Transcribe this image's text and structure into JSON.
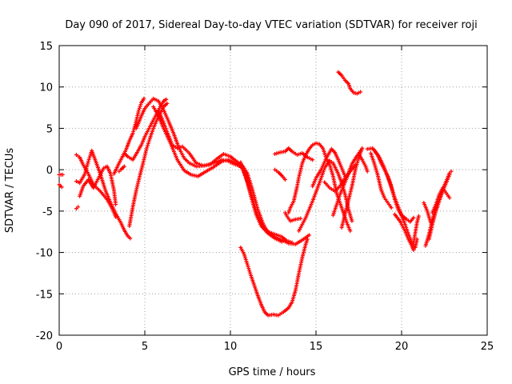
{
  "chart_data": {
    "type": "scatter",
    "title": "Day 090 of 2017, Sidereal Day-to-day VTEC variation (SDTVAR) for receiver roji",
    "xlabel": "GPS time / hours",
    "ylabel": "SDTVAR / TECUs",
    "xlim": [
      0,
      25
    ],
    "ylim": [
      -20,
      15
    ],
    "xticks": [
      0,
      5,
      10,
      15,
      20,
      25
    ],
    "yticks": [
      -20,
      -15,
      -10,
      -5,
      0,
      5,
      10,
      15
    ],
    "xtick_labels": [
      "0",
      "5",
      "10",
      "15",
      "20",
      "25"
    ],
    "ytick_labels": [
      "-20",
      "-15",
      "-10",
      "-5",
      "0",
      "5",
      "10",
      "15"
    ],
    "grid": true,
    "marker": "+",
    "color": "#ff0000",
    "tracks": [
      [
        [
          0,
          -0.6
        ],
        [
          0.2,
          -0.6
        ]
      ],
      [
        [
          0,
          -1.8
        ],
        [
          0.15,
          -2.1
        ]
      ],
      [
        [
          1.0,
          -4.7
        ],
        [
          1.1,
          -4.5
        ]
      ],
      [
        [
          1.0,
          1.8
        ],
        [
          1.2,
          1.5
        ],
        [
          1.4,
          0.6
        ],
        [
          1.7,
          -0.5
        ],
        [
          2.0,
          -1.8
        ],
        [
          2.4,
          -2.6
        ],
        [
          2.8,
          -3.6
        ],
        [
          3.1,
          -4.7
        ],
        [
          3.3,
          -5.7
        ]
      ],
      [
        [
          1.0,
          -1.4
        ],
        [
          1.2,
          -1.6
        ],
        [
          1.5,
          -0.5
        ],
        [
          1.7,
          1.0
        ],
        [
          1.9,
          2.3
        ],
        [
          2.1,
          1.2
        ],
        [
          2.4,
          -0.5
        ],
        [
          2.7,
          -2.5
        ],
        [
          3.0,
          -4.0
        ],
        [
          3.3,
          -5.3
        ],
        [
          3.6,
          -6.4
        ],
        [
          3.8,
          -7.3
        ],
        [
          4.0,
          -8.0
        ],
        [
          4.15,
          -8.3
        ]
      ],
      [
        [
          1.2,
          -3.2
        ],
        [
          1.4,
          -2.0
        ],
        [
          1.7,
          -1.2
        ],
        [
          2.0,
          -2.2
        ],
        [
          2.3,
          -1.0
        ],
        [
          2.6,
          0.2
        ],
        [
          2.8,
          0.4
        ],
        [
          3.0,
          -0.5
        ],
        [
          3.2,
          -2.5
        ],
        [
          3.3,
          -4.2
        ]
      ],
      [
        [
          3.2,
          -0.5
        ],
        [
          3.5,
          0.8
        ],
        [
          3.8,
          2.0
        ],
        [
          4.0,
          1.6
        ],
        [
          4.3,
          1.2
        ],
        [
          4.5,
          1.9
        ],
        [
          4.8,
          3.0
        ],
        [
          5.0,
          4.0
        ],
        [
          5.3,
          5.2
        ],
        [
          5.6,
          6.4
        ],
        [
          5.9,
          7.6
        ],
        [
          6.1,
          8.3
        ],
        [
          6.25,
          8.5
        ]
      ],
      [
        [
          3.5,
          -0.2
        ],
        [
          3.6,
          0.0
        ],
        [
          3.8,
          0.4
        ]
      ],
      [
        [
          3.7,
          1.6
        ],
        [
          3.9,
          2.4
        ],
        [
          4.1,
          3.5
        ],
        [
          4.3,
          4.4
        ],
        [
          4.5,
          5.9
        ],
        [
          4.65,
          7.2
        ],
        [
          4.8,
          8.1
        ],
        [
          4.95,
          8.6
        ]
      ],
      [
        [
          4.1,
          -6.8
        ],
        [
          4.3,
          -4.5
        ],
        [
          4.5,
          -2.5
        ],
        [
          4.7,
          -0.8
        ],
        [
          4.9,
          0.8
        ],
        [
          5.1,
          2.5
        ],
        [
          5.3,
          3.8
        ],
        [
          5.5,
          5.0
        ],
        [
          5.7,
          6.0
        ],
        [
          5.9,
          6.8
        ],
        [
          6.1,
          7.6
        ],
        [
          6.3,
          8.0
        ]
      ],
      [
        [
          4.5,
          5.0
        ],
        [
          4.8,
          6.5
        ],
        [
          5.0,
          7.4
        ],
        [
          5.2,
          7.9
        ],
        [
          5.5,
          8.6
        ],
        [
          5.8,
          8.3
        ],
        [
          6.1,
          7.2
        ],
        [
          6.4,
          5.8
        ],
        [
          6.7,
          4.3
        ],
        [
          7.0,
          2.6
        ],
        [
          7.3,
          1.4
        ],
        [
          7.6,
          0.8
        ],
        [
          8.0,
          0.4
        ],
        [
          8.5,
          0.5
        ],
        [
          9.0,
          0.8
        ],
        [
          9.5,
          1.2
        ],
        [
          9.8,
          1.1
        ],
        [
          10.2,
          0.7
        ],
        [
          10.7,
          0.3
        ]
      ],
      [
        [
          5.5,
          7.6
        ],
        [
          5.8,
          6.5
        ],
        [
          6.1,
          5.0
        ],
        [
          6.5,
          3.2
        ],
        [
          6.9,
          1.2
        ],
        [
          7.3,
          -0.1
        ],
        [
          7.7,
          -0.6
        ],
        [
          8.1,
          -0.8
        ],
        [
          8.5,
          -0.3
        ],
        [
          9.0,
          0.3
        ],
        [
          9.5,
          1.0
        ],
        [
          9.9,
          1.2
        ],
        [
          10.3,
          0.8
        ],
        [
          10.6,
          0.5
        ]
      ],
      [
        [
          5.8,
          7.2
        ],
        [
          6.0,
          6.2
        ],
        [
          6.3,
          4.6
        ],
        [
          6.6,
          3.0
        ],
        [
          6.9,
          2.6
        ],
        [
          7.2,
          2.8
        ],
        [
          7.6,
          2.0
        ],
        [
          8.0,
          0.8
        ],
        [
          8.4,
          0.5
        ],
        [
          8.8,
          0.6
        ],
        [
          9.2,
          1.3
        ],
        [
          9.6,
          1.9
        ],
        [
          10.0,
          1.6
        ],
        [
          10.3,
          1.1
        ],
        [
          10.7,
          0.5
        ],
        [
          11.0,
          -0.5
        ],
        [
          11.3,
          -2.5
        ],
        [
          11.6,
          -4.8
        ],
        [
          11.9,
          -6.5
        ],
        [
          12.2,
          -7.6
        ],
        [
          12.6,
          -8.1
        ],
        [
          13.0,
          -8.5
        ],
        [
          13.4,
          -8.9
        ],
        [
          13.8,
          -9.0
        ],
        [
          14.2,
          -8.5
        ],
        [
          14.6,
          -7.9
        ]
      ],
      [
        [
          10.4,
          0.8
        ],
        [
          10.7,
          0.1
        ],
        [
          11.0,
          -1.5
        ],
        [
          11.3,
          -3.6
        ],
        [
          11.6,
          -5.6
        ],
        [
          11.9,
          -6.9
        ],
        [
          12.2,
          -7.5
        ],
        [
          12.6,
          -7.8
        ],
        [
          13.0,
          -8.1
        ],
        [
          13.3,
          -8.6
        ],
        [
          13.6,
          -8.8
        ]
      ],
      [
        [
          10.6,
          0.9
        ],
        [
          10.9,
          -0.8
        ],
        [
          11.2,
          -3.2
        ],
        [
          11.5,
          -5.4
        ],
        [
          11.8,
          -6.8
        ],
        [
          12.2,
          -7.7
        ],
        [
          12.6,
          -8.3
        ],
        [
          13.0,
          -8.7
        ]
      ],
      [
        [
          10.6,
          -9.4
        ],
        [
          10.8,
          -10.2
        ],
        [
          11.0,
          -11.5
        ],
        [
          11.2,
          -12.8
        ],
        [
          11.4,
          -14.0
        ],
        [
          11.6,
          -15.2
        ],
        [
          11.8,
          -16.3
        ],
        [
          12.0,
          -17.2
        ],
        [
          12.2,
          -17.6
        ],
        [
          12.5,
          -17.5
        ],
        [
          12.8,
          -17.6
        ],
        [
          13.1,
          -17.2
        ],
        [
          13.4,
          -16.7
        ],
        [
          13.6,
          -16.0
        ],
        [
          13.8,
          -14.6
        ],
        [
          14.0,
          -12.5
        ],
        [
          14.2,
          -10.6
        ],
        [
          14.4,
          -9.0
        ],
        [
          14.5,
          -8.4
        ]
      ],
      [
        [
          12.6,
          1.9
        ],
        [
          12.9,
          2.1
        ],
        [
          13.2,
          2.2
        ],
        [
          13.4,
          2.6
        ],
        [
          13.6,
          2.2
        ],
        [
          13.9,
          1.8
        ],
        [
          14.2,
          2.0
        ],
        [
          14.5,
          1.5
        ],
        [
          14.8,
          1.2
        ]
      ],
      [
        [
          12.6,
          0.0
        ],
        [
          12.8,
          -0.3
        ],
        [
          13.0,
          -0.7
        ],
        [
          13.2,
          -1.2
        ]
      ],
      [
        [
          13.2,
          -5.2
        ],
        [
          13.3,
          -5.6
        ],
        [
          13.5,
          -6.2
        ],
        [
          13.8,
          -6.0
        ],
        [
          14.1,
          -5.9
        ]
      ],
      [
        [
          13.4,
          -5.2
        ],
        [
          13.5,
          -4.6
        ],
        [
          13.7,
          -3.8
        ],
        [
          13.9,
          -2.0
        ],
        [
          14.0,
          -0.9
        ],
        [
          14.2,
          0.8
        ],
        [
          14.4,
          1.8
        ],
        [
          14.6,
          2.5
        ],
        [
          14.8,
          3.0
        ],
        [
          15.0,
          3.2
        ],
        [
          15.2,
          3.1
        ],
        [
          15.4,
          2.6
        ],
        [
          15.6,
          1.4
        ],
        [
          15.8,
          0.6
        ],
        [
          16.0,
          -0.8
        ],
        [
          16.2,
          -2.8
        ],
        [
          16.4,
          -4.0
        ],
        [
          16.6,
          -5.2
        ],
        [
          16.8,
          -6.4
        ],
        [
          17.0,
          -7.4
        ]
      ],
      [
        [
          14.0,
          -7.4
        ],
        [
          14.4,
          -5.8
        ],
        [
          14.8,
          -3.8
        ],
        [
          15.2,
          -1.6
        ],
        [
          15.5,
          0.2
        ],
        [
          15.8,
          1.1
        ],
        [
          16.0,
          0.8
        ],
        [
          16.3,
          -0.5
        ],
        [
          16.5,
          -1.6
        ],
        [
          16.7,
          -3.0
        ],
        [
          16.9,
          -4.8
        ],
        [
          17.1,
          -6.2
        ]
      ],
      [
        [
          14.8,
          -2.0
        ],
        [
          15.0,
          -1.0
        ],
        [
          15.3,
          0.0
        ],
        [
          15.6,
          1.4
        ],
        [
          15.9,
          2.5
        ],
        [
          16.1,
          2.1
        ],
        [
          16.3,
          1.2
        ],
        [
          16.5,
          0.2
        ],
        [
          16.7,
          -0.8
        ]
      ],
      [
        [
          15.5,
          -1.5
        ],
        [
          15.8,
          -2.2
        ],
        [
          16.1,
          -2.6
        ],
        [
          16.4,
          -2.0
        ],
        [
          16.7,
          -1.0
        ],
        [
          17.0,
          -0.2
        ],
        [
          17.3,
          0.6
        ]
      ],
      [
        [
          16.3,
          11.8
        ],
        [
          16.5,
          11.4
        ],
        [
          16.7,
          10.8
        ],
        [
          16.9,
          10.4
        ],
        [
          17.0,
          9.8
        ],
        [
          17.2,
          9.3
        ],
        [
          17.4,
          9.2
        ],
        [
          17.6,
          9.4
        ]
      ],
      [
        [
          16.0,
          -5.5
        ],
        [
          16.4,
          -3.0
        ],
        [
          16.8,
          -1.0
        ],
        [
          17.1,
          0.7
        ],
        [
          17.4,
          1.7
        ],
        [
          17.6,
          2.3
        ]
      ],
      [
        [
          16.5,
          -7.0
        ],
        [
          16.8,
          -4.5
        ],
        [
          17.1,
          -2.0
        ],
        [
          17.3,
          0.0
        ],
        [
          17.5,
          1.5
        ],
        [
          17.7,
          2.6
        ]
      ],
      [
        [
          17.5,
          1.9
        ],
        [
          17.7,
          1.2
        ],
        [
          17.9,
          0.4
        ],
        [
          18.0,
          -0.2
        ]
      ],
      [
        [
          18.0,
          2.5
        ],
        [
          18.3,
          2.6
        ],
        [
          18.6,
          1.8
        ],
        [
          18.8,
          0.8
        ],
        [
          19.0,
          0.0
        ],
        [
          19.2,
          -0.8
        ],
        [
          19.4,
          -2.0
        ],
        [
          19.6,
          -3.6
        ],
        [
          19.8,
          -4.8
        ],
        [
          20.0,
          -5.5
        ],
        [
          20.3,
          -6.0
        ],
        [
          20.5,
          -6.3
        ],
        [
          20.7,
          -5.8
        ]
      ],
      [
        [
          18.2,
          2.0
        ],
        [
          18.4,
          0.8
        ],
        [
          18.6,
          -0.6
        ],
        [
          18.8,
          -2.4
        ],
        [
          19.0,
          -3.4
        ],
        [
          19.2,
          -4.0
        ],
        [
          19.4,
          -4.6
        ]
      ],
      [
        [
          18.4,
          2.4
        ],
        [
          18.7,
          1.5
        ],
        [
          19.0,
          0.2
        ],
        [
          19.3,
          -1.5
        ],
        [
          19.6,
          -3.4
        ],
        [
          19.9,
          -5.0
        ],
        [
          20.2,
          -6.6
        ],
        [
          20.4,
          -7.8
        ],
        [
          20.6,
          -8.8
        ],
        [
          20.8,
          -9.4
        ],
        [
          20.9,
          -8.4
        ]
      ],
      [
        [
          19.6,
          -5.4
        ],
        [
          19.9,
          -6.2
        ],
        [
          20.2,
          -7.4
        ],
        [
          20.4,
          -8.4
        ],
        [
          20.6,
          -9.2
        ],
        [
          20.7,
          -9.7
        ]
      ],
      [
        [
          20.7,
          -8.8
        ],
        [
          20.8,
          -7.6
        ],
        [
          20.9,
          -6.4
        ],
        [
          21.0,
          -5.6
        ]
      ],
      [
        [
          21.4,
          -9.2
        ],
        [
          21.6,
          -7.8
        ],
        [
          21.8,
          -6.0
        ],
        [
          22.0,
          -4.6
        ],
        [
          22.2,
          -3.6
        ],
        [
          22.4,
          -2.4
        ],
        [
          22.6,
          -1.4
        ],
        [
          22.8,
          -0.4
        ],
        [
          22.9,
          -0.2
        ]
      ],
      [
        [
          21.6,
          -8.4
        ],
        [
          21.8,
          -6.6
        ],
        [
          22.0,
          -5.0
        ],
        [
          22.2,
          -3.8
        ],
        [
          22.4,
          -2.6
        ],
        [
          22.6,
          -1.6
        ],
        [
          22.8,
          -0.6
        ]
      ],
      [
        [
          21.8,
          -5.2
        ],
        [
          22.0,
          -4.2
        ],
        [
          22.2,
          -3.0
        ],
        [
          22.4,
          -2.2
        ],
        [
          22.6,
          -2.8
        ],
        [
          22.8,
          -3.4
        ]
      ],
      [
        [
          21.3,
          -4.0
        ],
        [
          21.5,
          -5.0
        ],
        [
          21.7,
          -6.4
        ],
        [
          21.9,
          -5.6
        ],
        [
          22.1,
          -4.4
        ]
      ]
    ]
  }
}
